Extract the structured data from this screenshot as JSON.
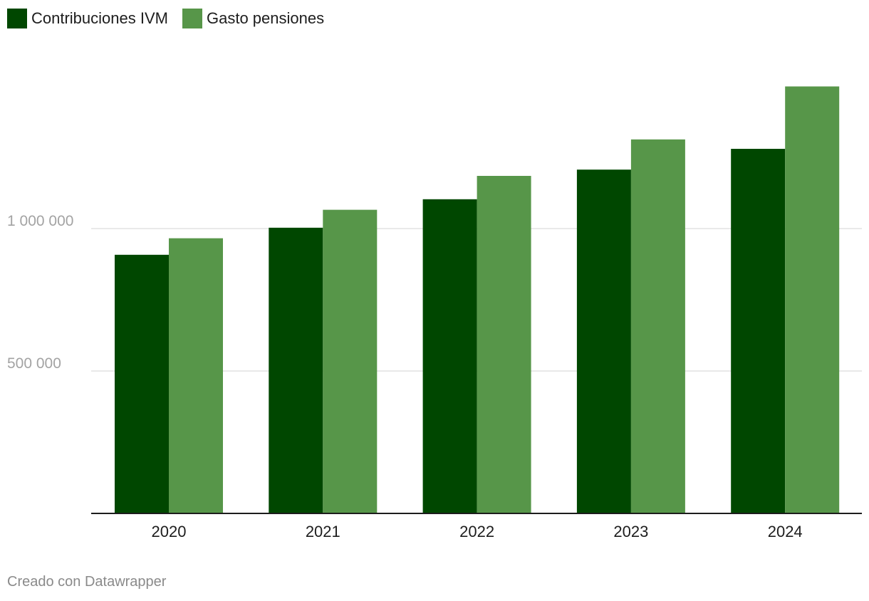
{
  "chart_data": {
    "type": "bar",
    "title": "",
    "xlabel": "",
    "ylabel": "",
    "categories": [
      "2020",
      "2021",
      "2022",
      "2023",
      "2024"
    ],
    "series": [
      {
        "name": "Contribuciones IVM",
        "color": "#004700",
        "values": [
          908000,
          1003000,
          1103000,
          1207000,
          1280000
        ]
      },
      {
        "name": "Gasto pensiones",
        "color": "#579649",
        "values": [
          966000,
          1066000,
          1185000,
          1313000,
          1499000
        ]
      }
    ],
    "ylim": [
      0,
      1500000
    ],
    "yticks": [
      {
        "value": 500000,
        "label": "500 000"
      },
      {
        "value": 1000000,
        "label": "1 000 000"
      }
    ],
    "grid": true,
    "legend_position": "top-left"
  },
  "footer": {
    "credit": "Creado con Datawrapper"
  }
}
